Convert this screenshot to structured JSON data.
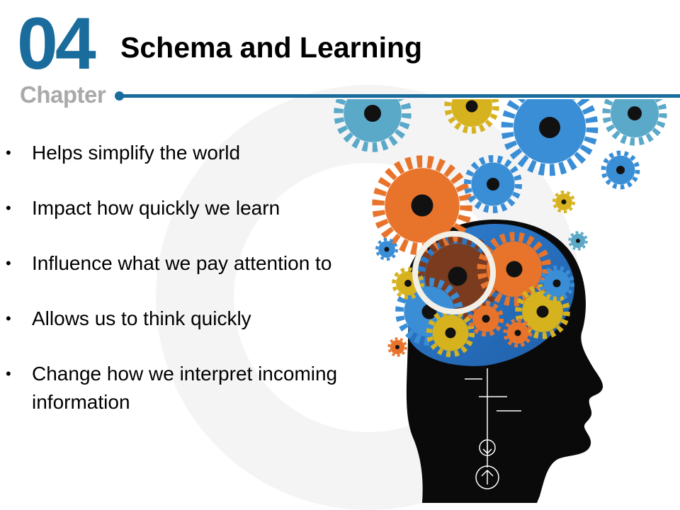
{
  "slide": {
    "chapter_number": "04",
    "chapter_label": "Chapter",
    "title": "Schema and Learning",
    "bullets": [
      "Helps simplify the world",
      "Impact how quickly we learn",
      "Influence what we pay attention to",
      "Allows us to think quickly",
      "Change how we interpret incoming information"
    ]
  },
  "colors": {
    "accent_blue": "#1a6c9c",
    "chapter_gray": "#a9a9a9",
    "head_black": "#0a0a0a",
    "gear_orange": "#e8742c",
    "gear_blue": "#3a8ed6",
    "gear_yellow": "#d7b21f",
    "gear_teal": "#5aa9c8"
  },
  "image": {
    "subject": "head-with-gears-illustration-icon"
  }
}
